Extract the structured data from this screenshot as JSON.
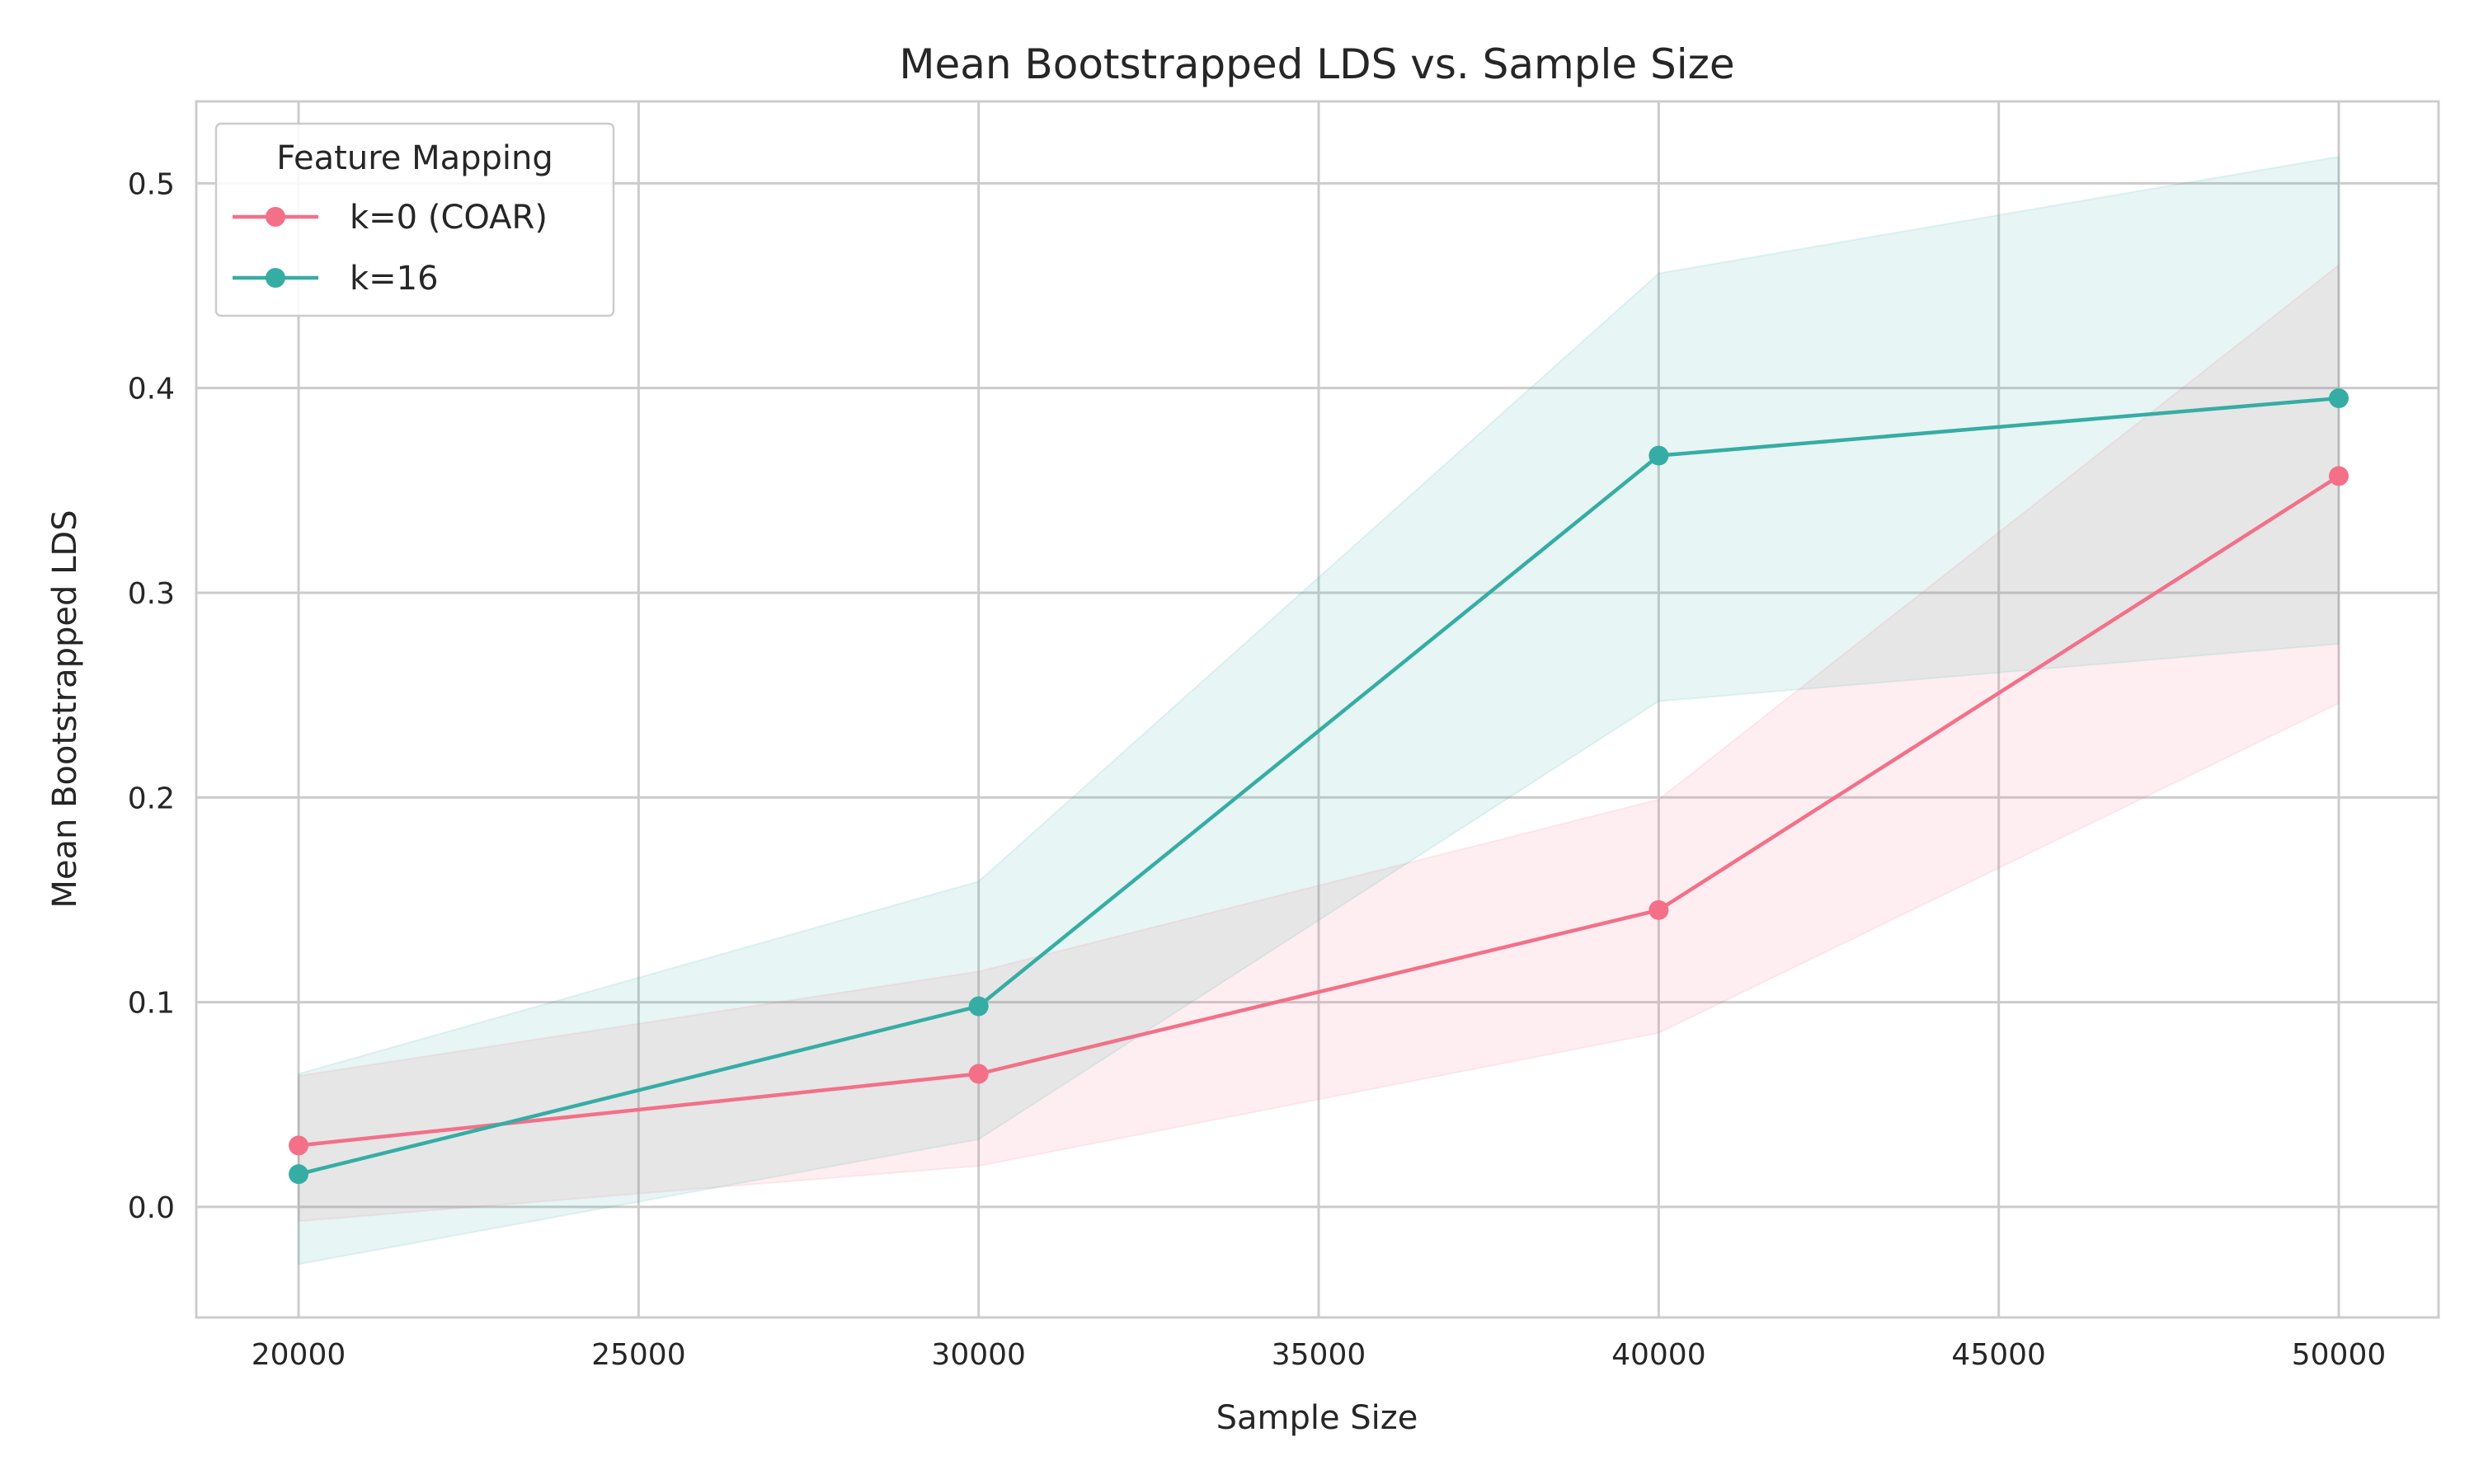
{
  "chart_data": {
    "type": "line",
    "title": "Mean Bootstrapped LDS vs. Sample Size",
    "xlabel": "Sample Size",
    "ylabel": "Mean Bootstrapped LDS",
    "xlim": [
      18496,
      51467
    ],
    "ylim": [
      -0.054,
      0.54
    ],
    "xticks": [
      20000,
      25000,
      30000,
      35000,
      40000,
      45000,
      50000
    ],
    "yticks": [
      0.0,
      0.1,
      0.2,
      0.3,
      0.4,
      0.5
    ],
    "ytick_labels": [
      "0.0",
      "0.1",
      "0.2",
      "0.3",
      "0.4",
      "0.5"
    ],
    "grid": true,
    "legend": {
      "title": "Feature Mapping",
      "placement": "top-left"
    },
    "x": [
      20000,
      30000,
      40000,
      50000
    ],
    "series": [
      {
        "name": "k=0 (COAR)",
        "color": "#f37088",
        "values": [
          0.03,
          0.065,
          0.145,
          0.357
        ],
        "lower": [
          -0.007,
          0.02,
          0.085,
          0.246
        ],
        "upper": [
          0.064,
          0.115,
          0.199,
          0.46
        ]
      },
      {
        "name": "k=16",
        "color": "#36ada4",
        "values": [
          0.016,
          0.098,
          0.367,
          0.395
        ],
        "lower": [
          -0.028,
          0.033,
          0.247,
          0.275
        ],
        "upper": [
          0.065,
          0.159,
          0.456,
          0.513
        ]
      }
    ]
  }
}
